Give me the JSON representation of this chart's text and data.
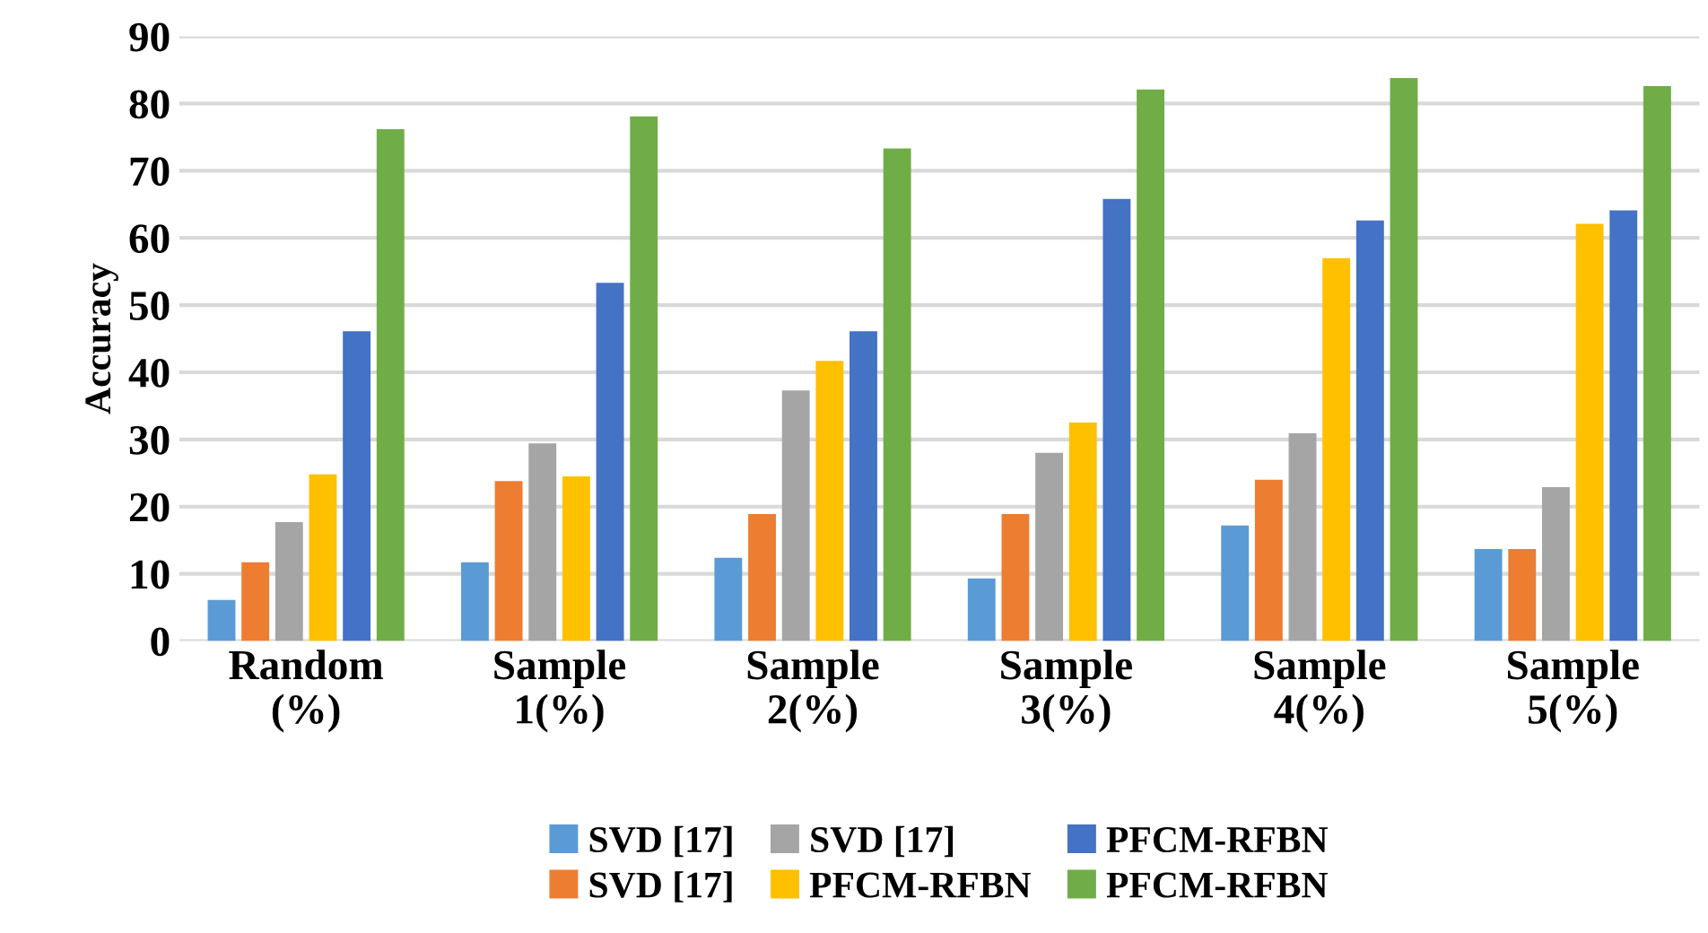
{
  "chart_data": {
    "type": "bar",
    "ylabel": "Accuracy",
    "categories": [
      "Random\n(%)",
      "Sample\n1(%)",
      "Sample\n2(%)",
      "Sample\n3(%)",
      "Sample\n4(%)",
      "Sample\n5(%)"
    ],
    "series": [
      {
        "name": "SVD [17]",
        "color": "#5b9bd5",
        "values": [
          6.1,
          11.7,
          12.4,
          9.3,
          17.2,
          13.7
        ]
      },
      {
        "name": "SVD [17]",
        "color": "#ed7d31",
        "values": [
          11.7,
          23.8,
          18.9,
          18.9,
          24.0,
          13.7
        ]
      },
      {
        "name": "SVD [17]",
        "color": "#a5a5a5",
        "values": [
          17.7,
          29.4,
          37.3,
          28.0,
          30.9,
          22.9
        ]
      },
      {
        "name": "PFCM-RFBN",
        "color": "#ffc000",
        "values": [
          24.8,
          24.5,
          41.7,
          32.5,
          57.0,
          62.1
        ]
      },
      {
        "name": "PFCM-RFBN",
        "color": "#4472c4",
        "values": [
          46.1,
          53.3,
          46.1,
          65.8,
          62.6,
          64.1
        ]
      },
      {
        "name": "PFCM-RFBN",
        "color": "#70ad47",
        "values": [
          76.2,
          78.1,
          73.3,
          82.1,
          83.8,
          82.6
        ]
      }
    ],
    "ylim": [
      0,
      90
    ],
    "yticks": [
      0,
      10,
      20,
      30,
      40,
      50,
      60,
      70,
      80,
      90
    ],
    "grid": "y",
    "legend": "bottom"
  }
}
